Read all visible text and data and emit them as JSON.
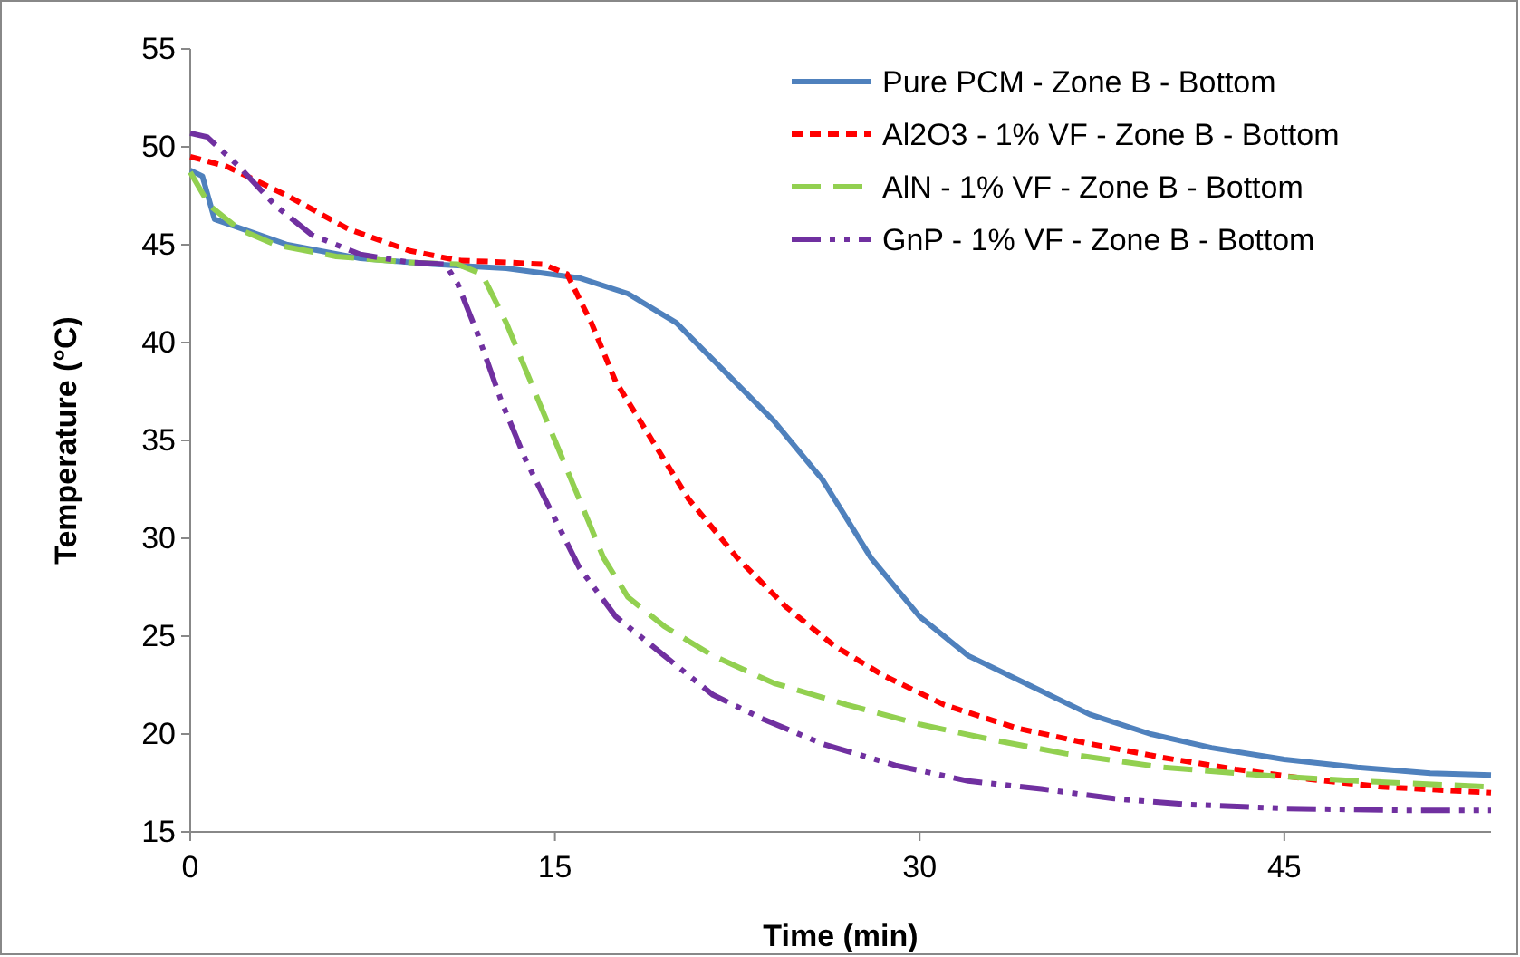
{
  "chart_data": {
    "type": "line",
    "xlabel": "Time (min)",
    "ylabel": "Temperature (°C)",
    "xlim": [
      0,
      53.5
    ],
    "xticks": [
      0,
      15,
      30,
      45
    ],
    "ylim": [
      15,
      55
    ],
    "yticks": [
      15,
      20,
      25,
      30,
      35,
      40,
      45,
      50,
      55
    ],
    "grid": false,
    "legend": "top right",
    "marker": "none",
    "series": [
      {
        "name": "Pure PCM - Zone B - Bottom",
        "color": "#4f81bd",
        "line_style": "solid",
        "x": [
          0,
          0.5,
          1,
          4,
          7,
          10,
          13,
          16,
          18,
          20,
          22,
          24,
          26,
          28,
          30,
          32,
          34.5,
          37,
          39.5,
          42,
          45,
          48,
          51,
          53.5
        ],
        "values": [
          48.8,
          48.5,
          46.3,
          45,
          44.3,
          44,
          43.8,
          43.3,
          42.5,
          41,
          38.5,
          36,
          33,
          29,
          26,
          24,
          22.5,
          21,
          20,
          19.3,
          18.7,
          18.3,
          18,
          17.9
        ]
      },
      {
        "name": "Al2O3 - 1% VF - Zone B - Bottom",
        "color": "#ff0000",
        "line_style": "dotted",
        "x": [
          0,
          1.5,
          4,
          6.5,
          9,
          11,
          13,
          14.5,
          15.5,
          16.5,
          17.5,
          19,
          20.5,
          22.5,
          24.5,
          26.5,
          28.5,
          31,
          34,
          37,
          40,
          43,
          46,
          49,
          53.5
        ],
        "values": [
          49.5,
          49,
          47.5,
          45.8,
          44.7,
          44.2,
          44.1,
          44,
          43.5,
          41,
          38,
          35,
          32,
          29,
          26.5,
          24.5,
          23,
          21.5,
          20.3,
          19.5,
          18.8,
          18.2,
          17.7,
          17.3,
          17
        ]
      },
      {
        "name": "AlN - 1% VF - Zone B - Bottom",
        "color": "#92d050",
        "line_style": "dashed",
        "x": [
          0,
          0.8,
          2,
          3.5,
          6,
          9,
          11,
          12,
          13,
          14,
          15,
          16,
          17,
          18,
          19.5,
          21.5,
          24,
          27,
          30,
          33,
          36,
          40,
          44,
          48,
          53.5
        ],
        "values": [
          48.7,
          47,
          45.8,
          45,
          44.4,
          44.1,
          44,
          43.5,
          41,
          38,
          35,
          32,
          29,
          27,
          25.5,
          24,
          22.6,
          21.5,
          20.5,
          19.7,
          19,
          18.3,
          17.9,
          17.6,
          17.3
        ]
      },
      {
        "name": "GnP - 1% VF - Zone B - Bottom",
        "color": "#7030a0",
        "line_style": "dashdotdot",
        "x": [
          0,
          0.7,
          2,
          3.5,
          5,
          7,
          9,
          10.5,
          11,
          11.8,
          12.8,
          13.8,
          15,
          16,
          17.5,
          19.5,
          21.5,
          23.5,
          26,
          29,
          32,
          35,
          38,
          41,
          45,
          50,
          53.5
        ],
        "values": [
          50.7,
          50.5,
          49,
          47,
          45.5,
          44.5,
          44.1,
          44,
          43,
          40.5,
          37,
          34,
          31,
          28.5,
          26,
          24,
          22,
          20.8,
          19.5,
          18.4,
          17.6,
          17.2,
          16.7,
          16.4,
          16.2,
          16.1,
          16.1
        ]
      }
    ]
  }
}
